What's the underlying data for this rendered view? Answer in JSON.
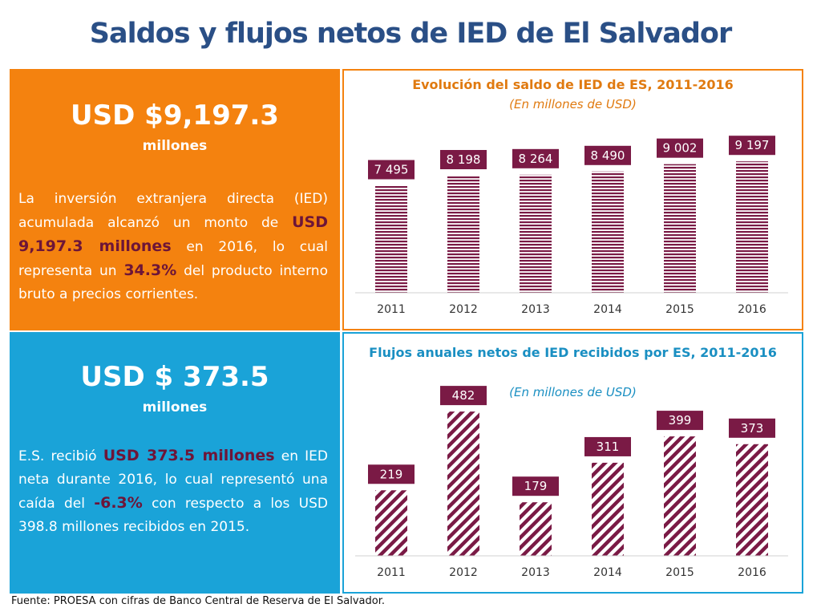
{
  "page": {
    "title": "Saldos y flujos netos de IED de El Salvador",
    "source": "Fuente: PROESA con cifras de Banco Central de Reserva de El Salvador."
  },
  "stock_panel": {
    "amount": "USD $9,197.3",
    "unit": "millones",
    "text_1": "La inversión extranjera directa (IED) acumulada alcanzó un monto de ",
    "highlight_1": "USD 9,197.3 millones",
    "text_2": " en 2016, lo cual representa un ",
    "highlight_2": "34.3%",
    "text_3": " del producto interno bruto a precios corrientes."
  },
  "flow_panel": {
    "amount": "USD $ 373.5",
    "unit": "millones",
    "text_1": "E.S. recibió ",
    "highlight_1": "USD 373.5 millones",
    "text_2": " en IED neta durante 2016, lo cual representó una caída del ",
    "highlight_2": "-6.3%",
    "text_3": " con respecto a los USD 398.8 millones recibidos en 2015."
  },
  "colors": {
    "orange": "#f4820f",
    "blue": "#1aa3d8",
    "maroon": "#7a1a45",
    "title": "#2a4f86"
  },
  "chart_data": [
    {
      "type": "bar",
      "title": "Evolución del saldo de IED de ES, 2011-2016",
      "subtitle": "(En millones de USD)",
      "categories": [
        "2011",
        "2012",
        "2013",
        "2014",
        "2015",
        "2016"
      ],
      "values": [
        7495,
        8198,
        8264,
        8490,
        9002,
        9197
      ],
      "labels": [
        "7 495",
        "8 198",
        "8 264",
        "8 490",
        "9 002",
        "9 197"
      ],
      "ylim": [
        0,
        10500
      ],
      "pattern": "horizontal-stripes",
      "xlabel": "",
      "ylabel": ""
    },
    {
      "type": "bar",
      "title": "Flujos anuales netos de IED recibidos por ES, 2011-2016",
      "subtitle": "(En millones de USD)",
      "categories": [
        "2011",
        "2012",
        "2013",
        "2014",
        "2015",
        "2016"
      ],
      "values": [
        219,
        482,
        179,
        311,
        399,
        373
      ],
      "labels": [
        "219",
        "482",
        "179",
        "311",
        "399",
        "373"
      ],
      "ylim": [
        0,
        560
      ],
      "pattern": "diagonal-stripes",
      "xlabel": "",
      "ylabel": ""
    }
  ]
}
